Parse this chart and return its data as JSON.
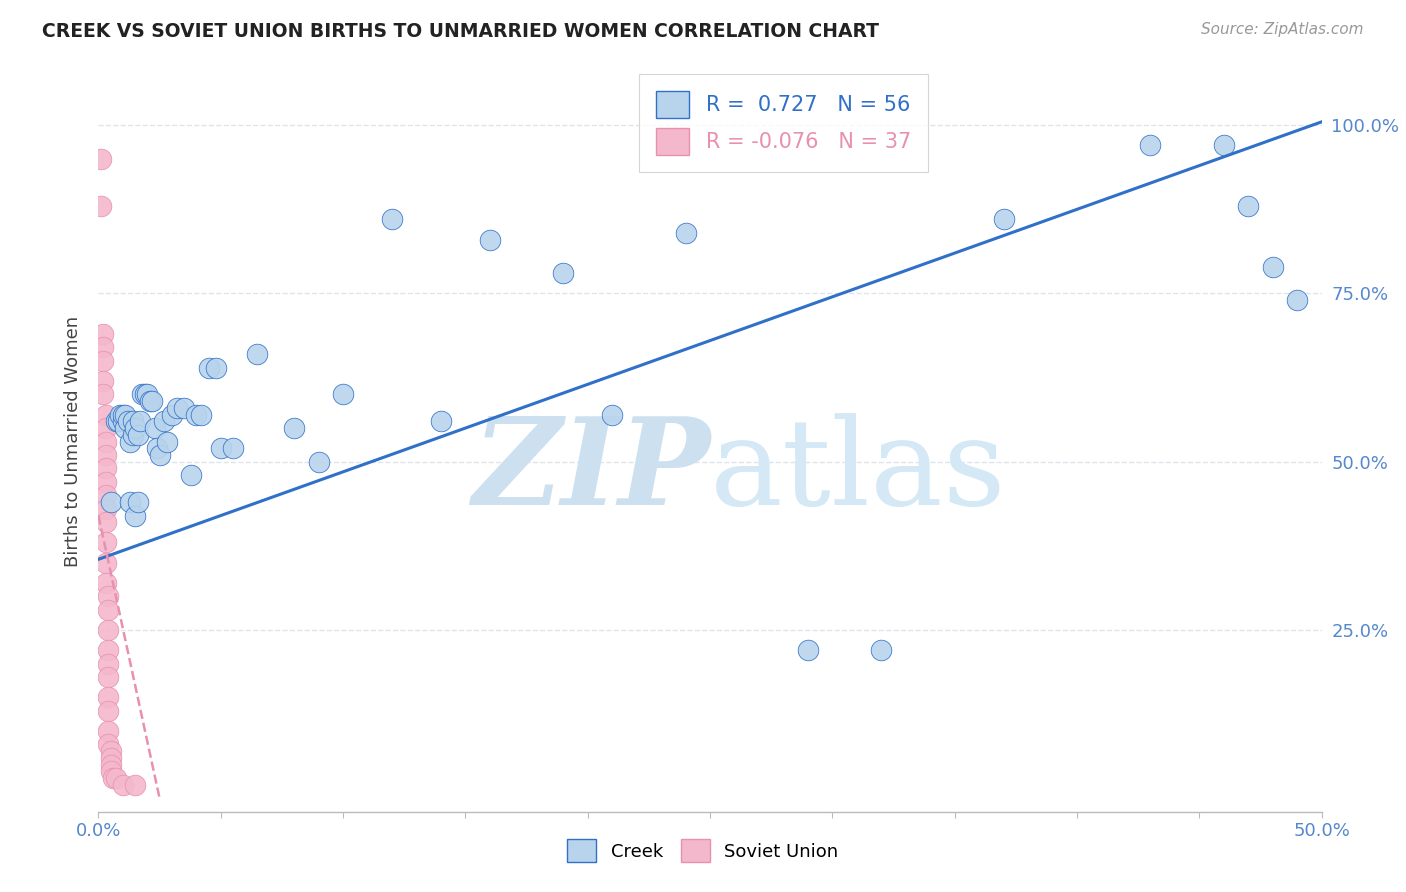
{
  "title": "CREEK VS SOVIET UNION BIRTHS TO UNMARRIED WOMEN CORRELATION CHART",
  "source": "Source: ZipAtlas.com",
  "ylabel": "Births to Unmarried Women",
  "yticks": [
    0.0,
    0.25,
    0.5,
    0.75,
    1.0
  ],
  "ytick_labels": [
    "",
    "25.0%",
    "50.0%",
    "75.0%",
    "100.0%"
  ],
  "xmin": 0.0,
  "xmax": 0.5,
  "ymin": -0.02,
  "ymax": 1.08,
  "legend_blue_r": "0.727",
  "legend_blue_n": "56",
  "legend_pink_r": "-0.076",
  "legend_pink_n": "37",
  "blue_color": "#b8d4ec",
  "pink_color": "#f4b8cc",
  "blue_line_color": "#3070c8",
  "pink_line_color": "#e890b0",
  "blue_trend_x0": 0.0,
  "blue_trend_y0": 0.355,
  "blue_trend_x1": 0.5,
  "blue_trend_y1": 1.005,
  "pink_trend_x0": 0.0,
  "pink_trend_y0": 0.42,
  "pink_trend_x1": 0.025,
  "pink_trend_y1": 0.0,
  "creek_scatter_x": [
    0.005,
    0.007,
    0.008,
    0.009,
    0.01,
    0.01,
    0.011,
    0.011,
    0.012,
    0.013,
    0.013,
    0.014,
    0.014,
    0.015,
    0.015,
    0.016,
    0.016,
    0.017,
    0.018,
    0.019,
    0.02,
    0.021,
    0.022,
    0.023,
    0.024,
    0.025,
    0.027,
    0.028,
    0.03,
    0.032,
    0.035,
    0.038,
    0.04,
    0.042,
    0.045,
    0.048,
    0.05,
    0.055,
    0.065,
    0.08,
    0.09,
    0.1,
    0.12,
    0.14,
    0.16,
    0.19,
    0.21,
    0.24,
    0.29,
    0.32,
    0.37,
    0.43,
    0.46,
    0.47,
    0.48,
    0.49
  ],
  "creek_scatter_y": [
    0.44,
    0.56,
    0.56,
    0.57,
    0.56,
    0.57,
    0.55,
    0.57,
    0.56,
    0.53,
    0.44,
    0.54,
    0.56,
    0.42,
    0.55,
    0.44,
    0.54,
    0.56,
    0.6,
    0.6,
    0.6,
    0.59,
    0.59,
    0.55,
    0.52,
    0.51,
    0.56,
    0.53,
    0.57,
    0.58,
    0.58,
    0.48,
    0.57,
    0.57,
    0.64,
    0.64,
    0.52,
    0.52,
    0.66,
    0.55,
    0.5,
    0.6,
    0.86,
    0.56,
    0.83,
    0.78,
    0.57,
    0.84,
    0.22,
    0.22,
    0.86,
    0.97,
    0.97,
    0.88,
    0.79,
    0.74
  ],
  "soviet_scatter_x": [
    0.001,
    0.001,
    0.002,
    0.002,
    0.002,
    0.002,
    0.002,
    0.003,
    0.003,
    0.003,
    0.003,
    0.003,
    0.003,
    0.003,
    0.003,
    0.003,
    0.003,
    0.003,
    0.003,
    0.004,
    0.004,
    0.004,
    0.004,
    0.004,
    0.004,
    0.004,
    0.004,
    0.004,
    0.004,
    0.005,
    0.005,
    0.005,
    0.005,
    0.006,
    0.007,
    0.01,
    0.015
  ],
  "soviet_scatter_y": [
    0.95,
    0.88,
    0.69,
    0.67,
    0.65,
    0.62,
    0.6,
    0.57,
    0.55,
    0.53,
    0.51,
    0.49,
    0.47,
    0.45,
    0.43,
    0.41,
    0.38,
    0.35,
    0.32,
    0.3,
    0.28,
    0.25,
    0.22,
    0.2,
    0.18,
    0.15,
    0.13,
    0.1,
    0.08,
    0.07,
    0.06,
    0.05,
    0.04,
    0.03,
    0.03,
    0.02,
    0.02
  ],
  "watermark_zip": "ZIP",
  "watermark_atlas": "atlas",
  "watermark_color_zip": "#cce0f0",
  "watermark_color_atlas": "#d5e8f5",
  "grid_color": "#e0e4ec",
  "background_color": "#ffffff",
  "grid_line_style": "--"
}
